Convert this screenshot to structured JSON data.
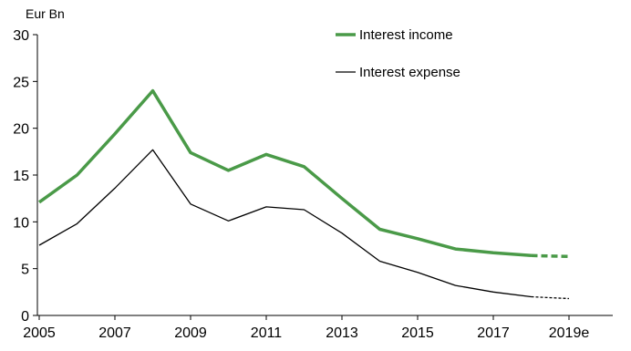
{
  "chart_data": {
    "type": "line",
    "ylabel": "Eur Bn",
    "ylim": [
      0,
      30
    ],
    "yticks": [
      "0",
      "5",
      "10",
      "15",
      "20",
      "25",
      "30"
    ],
    "xlim": [
      2005,
      2020
    ],
    "xticks": [
      "2005",
      "2007",
      "2009",
      "2011",
      "2013",
      "2015",
      "2017",
      "2019e"
    ],
    "grid": false,
    "legend_position": "top-right",
    "series": [
      {
        "name": "Interest income",
        "color": "#4a9a48",
        "style": "thick",
        "x": [
          2005,
          2006,
          2007,
          2008,
          2009,
          2010,
          2011,
          2012,
          2013,
          2014,
          2015,
          2016,
          2017,
          2018,
          2019
        ],
        "values": [
          12.1,
          15.0,
          19.4,
          24.0,
          17.4,
          15.5,
          17.2,
          15.9,
          12.5,
          9.2,
          8.2,
          7.1,
          6.7,
          6.4,
          6.3
        ],
        "estimate_from": 2018
      },
      {
        "name": "Interest expense",
        "color": "#000000",
        "style": "thin",
        "x": [
          2005,
          2006,
          2007,
          2008,
          2009,
          2010,
          2011,
          2012,
          2013,
          2014,
          2015,
          2016,
          2017,
          2018,
          2019
        ],
        "values": [
          7.5,
          9.8,
          13.6,
          17.7,
          11.9,
          10.1,
          11.6,
          11.3,
          8.8,
          5.8,
          4.6,
          3.2,
          2.5,
          2.0,
          1.8
        ],
        "estimate_from": 2018
      }
    ]
  }
}
